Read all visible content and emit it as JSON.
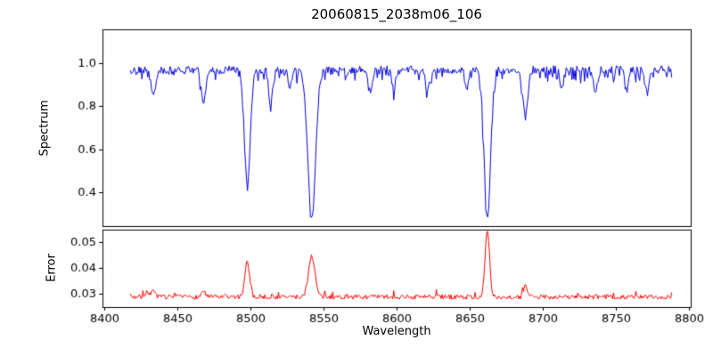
{
  "figure": {
    "title": "20060815_2038m06_106",
    "xlabel": "Wavelength",
    "ylabel_top": "Spectrum",
    "ylabel_bottom": "Error"
  },
  "chart_data": {
    "type": "line",
    "title": "20060815_2038m06_106",
    "xlabel": "Wavelength",
    "x_range": [
      8418,
      8788
    ],
    "xlim": [
      8399,
      8801
    ],
    "x_ticks": [
      8400,
      8450,
      8500,
      8550,
      8600,
      8650,
      8700,
      8750,
      8800
    ],
    "grid": false,
    "legend": "none",
    "panels": [
      {
        "name": "spectrum",
        "ylabel": "Spectrum",
        "line_color": "#0000dd",
        "ylim": [
          0.24,
          1.16
        ],
        "y_ticks": [
          0.4,
          0.6,
          0.8,
          1.0
        ],
        "continuum_level": 0.975,
        "noise_amplitude": 0.018,
        "absorption_lines": [
          {
            "center": 8498,
            "depth": 0.53,
            "width": 2.0
          },
          {
            "center": 8542,
            "depth": 0.7,
            "width": 2.6
          },
          {
            "center": 8662,
            "depth": 0.7,
            "width": 2.2
          },
          {
            "center": 8688,
            "depth": 0.22,
            "width": 1.6
          },
          {
            "center": 8434,
            "depth": 0.12,
            "width": 1.4
          },
          {
            "center": 8468,
            "depth": 0.15,
            "width": 1.5
          },
          {
            "center": 8514,
            "depth": 0.13,
            "width": 1.4
          },
          {
            "center": 8527,
            "depth": 0.09,
            "width": 1.2
          },
          {
            "center": 8582,
            "depth": 0.1,
            "width": 1.3
          },
          {
            "center": 8598,
            "depth": 0.09,
            "width": 1.2
          },
          {
            "center": 8621,
            "depth": 0.1,
            "width": 1.3
          },
          {
            "center": 8648,
            "depth": 0.08,
            "width": 1.2
          },
          {
            "center": 8713,
            "depth": 0.09,
            "width": 1.2
          },
          {
            "center": 8736,
            "depth": 0.1,
            "width": 1.3
          },
          {
            "center": 8757,
            "depth": 0.08,
            "width": 1.2
          },
          {
            "center": 8771,
            "depth": 0.11,
            "width": 1.3
          }
        ]
      },
      {
        "name": "error",
        "ylabel": "Error",
        "line_color": "#ff0000",
        "ylim": [
          0.0248,
          0.0548
        ],
        "y_ticks": [
          0.03,
          0.04,
          0.05
        ],
        "baseline_level": 0.0287,
        "noise_amplitude": 0.0009,
        "peaks": [
          {
            "center": 8498,
            "height": 0.0135,
            "width": 1.6
          },
          {
            "center": 8542,
            "height": 0.016,
            "width": 2.2
          },
          {
            "center": 8662,
            "height": 0.0255,
            "width": 1.5
          },
          {
            "center": 8688,
            "height": 0.004,
            "width": 1.3
          },
          {
            "center": 8434,
            "height": 0.003,
            "width": 1.2
          },
          {
            "center": 8468,
            "height": 0.0025,
            "width": 1.2
          },
          {
            "center": 8430,
            "height": 0.002,
            "width": 1.0
          }
        ]
      }
    ]
  }
}
